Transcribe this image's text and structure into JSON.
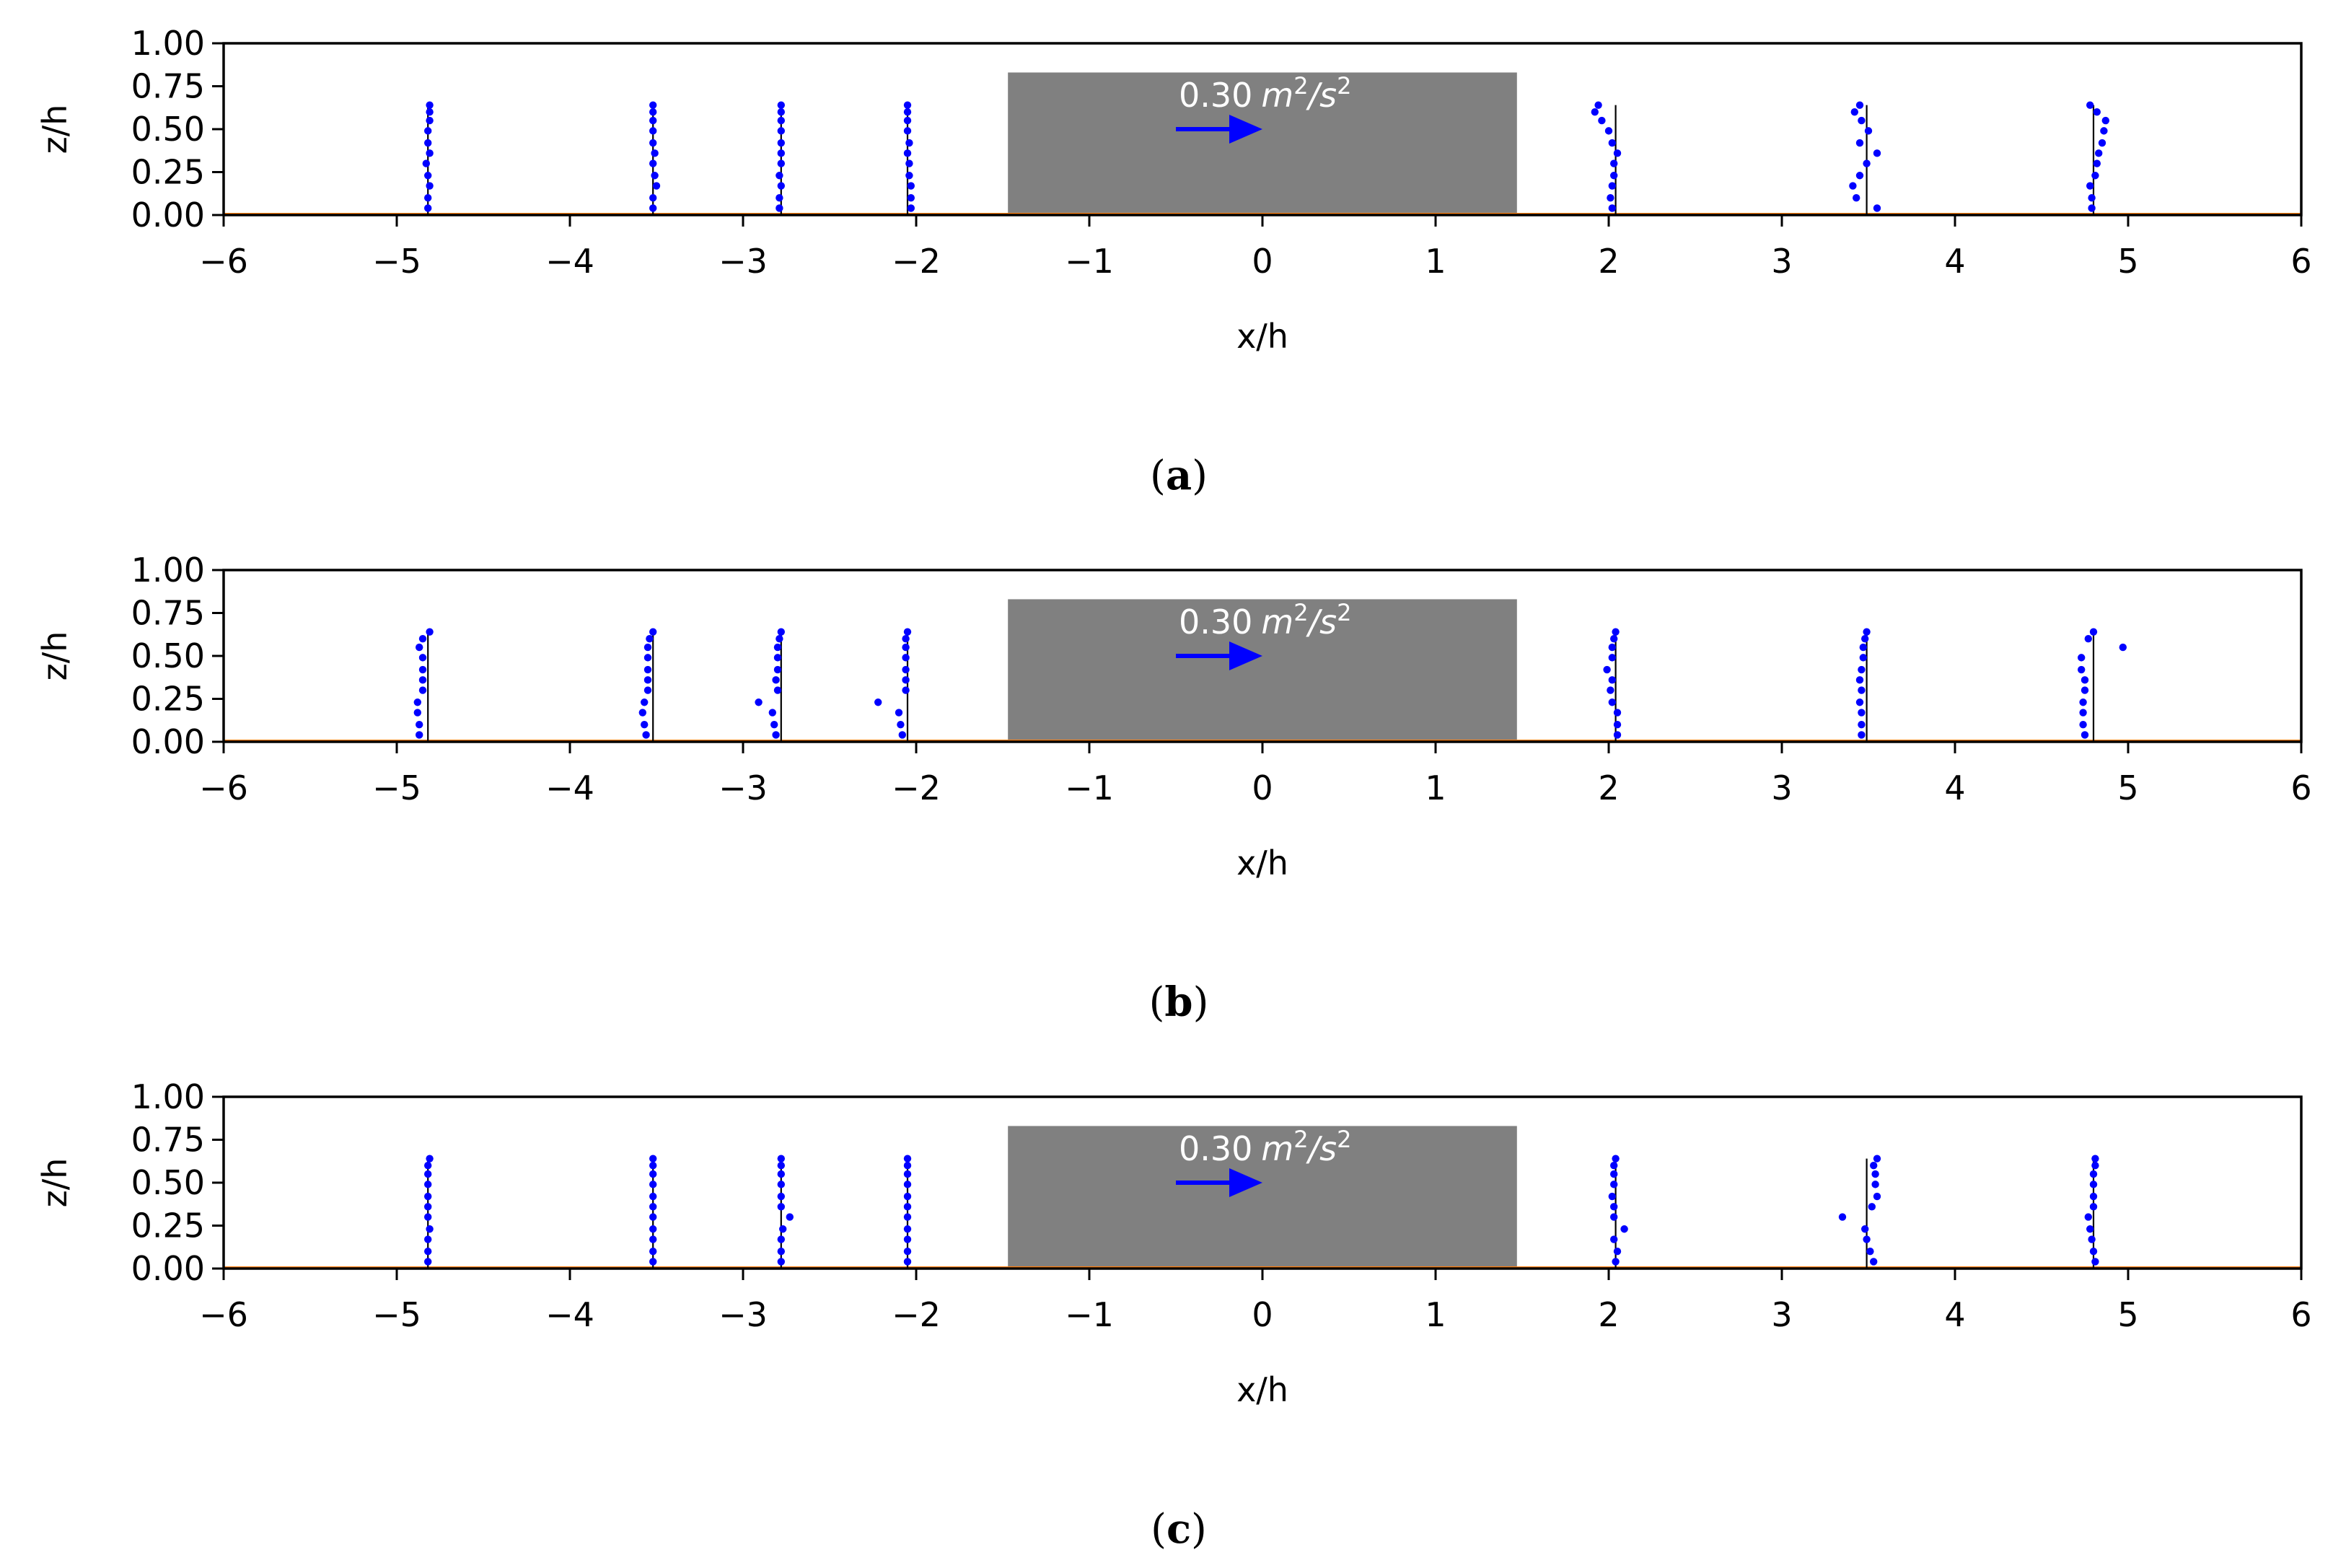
{
  "chart_data": [
    {
      "type": "scatter",
      "caption": "a",
      "xlabel": "x/h",
      "ylabel": "z/h",
      "xlim": [
        -6,
        6
      ],
      "ylim": [
        0,
        1
      ],
      "xticks": [
        "−6",
        "−5",
        "−4",
        "−3",
        "−2",
        "−1",
        "0",
        "1",
        "2",
        "3",
        "4",
        "5",
        "6"
      ],
      "yticks": [
        "0.00",
        "0.25",
        "0.50",
        "0.75",
        "1.00"
      ],
      "building": {
        "x": [
          -1.47,
          1.47
        ],
        "z": [
          0,
          0.83
        ],
        "color": "#808080"
      },
      "ground_line_color": "#ff7f0e",
      "reference_vector": {
        "label_value": "0.30",
        "label_unit": "m",
        "label_exp": "2",
        "label_unit2": "/s",
        "label_exp2": "2",
        "x0": -0.5,
        "x1": 0.0,
        "z": 0.5,
        "color": "#0000ff"
      },
      "profile_color": "#0000ff",
      "profiles": [
        {
          "x0": -4.82,
          "z": [
            0.04,
            0.1,
            0.17,
            0.23,
            0.3,
            0.36,
            0.42,
            0.49,
            0.55,
            0.6,
            0.64
          ],
          "dx": [
            0,
            0,
            0.01,
            0,
            -0.01,
            0.01,
            0,
            0,
            0.01,
            0.01,
            0.01
          ]
        },
        {
          "x0": -3.52,
          "z": [
            0.04,
            0.1,
            0.17,
            0.23,
            0.3,
            0.36,
            0.42,
            0.49,
            0.55,
            0.6,
            0.64
          ],
          "dx": [
            0,
            0,
            0.02,
            0.01,
            0,
            0.01,
            0,
            0,
            0,
            0,
            0
          ]
        },
        {
          "x0": -2.78,
          "z": [
            0.04,
            0.1,
            0.17,
            0.23,
            0.3,
            0.36,
            0.42,
            0.49,
            0.55,
            0.6,
            0.64
          ],
          "dx": [
            -0.01,
            -0.01,
            0,
            -0.01,
            0,
            0,
            0,
            0,
            0,
            0,
            0
          ]
        },
        {
          "x0": -2.05,
          "z": [
            0.04,
            0.1,
            0.17,
            0.23,
            0.3,
            0.36,
            0.42,
            0.49,
            0.55,
            0.6,
            0.64
          ],
          "dx": [
            0.02,
            0.02,
            0.02,
            0.01,
            0.01,
            0,
            0.01,
            0,
            0,
            0,
            0
          ]
        },
        {
          "x0": 2.04,
          "z": [
            0.04,
            0.1,
            0.17,
            0.23,
            0.3,
            0.36,
            0.42,
            0.49,
            0.55,
            0.6,
            0.64
          ],
          "dx": [
            -0.02,
            -0.03,
            -0.02,
            -0.01,
            -0.01,
            0.01,
            -0.02,
            -0.04,
            -0.08,
            -0.12,
            -0.1
          ]
        },
        {
          "x0": 3.49,
          "z": [
            0.04,
            0.1,
            0.17,
            0.23,
            0.3,
            0.36,
            0.42,
            0.49,
            0.55,
            0.6,
            0.64
          ],
          "dx": [
            0.06,
            -0.06,
            -0.08,
            -0.04,
            0,
            0.06,
            -0.04,
            0.01,
            -0.03,
            -0.07,
            -0.04
          ]
        },
        {
          "x0": 4.8,
          "z": [
            0.04,
            0.1,
            0.17,
            0.23,
            0.3,
            0.36,
            0.42,
            0.49,
            0.55,
            0.6,
            0.64
          ],
          "dx": [
            -0.01,
            -0.01,
            -0.02,
            0.01,
            0.02,
            0.03,
            0.05,
            0.06,
            0.07,
            0.02,
            -0.02
          ]
        }
      ]
    },
    {
      "type": "scatter",
      "caption": "b",
      "xlabel": "x/h",
      "ylabel": "z/h",
      "xlim": [
        -6,
        6
      ],
      "ylim": [
        0,
        1
      ],
      "xticks": [
        "−6",
        "−5",
        "−4",
        "−3",
        "−2",
        "−1",
        "0",
        "1",
        "2",
        "3",
        "4",
        "5",
        "6"
      ],
      "yticks": [
        "0.00",
        "0.25",
        "0.50",
        "0.75",
        "1.00"
      ],
      "building": {
        "x": [
          -1.47,
          1.47
        ],
        "z": [
          0,
          0.83
        ],
        "color": "#808080"
      },
      "ground_line_color": "#ff7f0e",
      "reference_vector": {
        "label_value": "0.30",
        "label_unit": "m",
        "label_exp": "2",
        "label_unit2": "/s",
        "label_exp2": "2",
        "x0": -0.5,
        "x1": 0.0,
        "z": 0.5,
        "color": "#0000ff"
      },
      "profile_color": "#0000ff",
      "profiles": [
        {
          "x0": -4.82,
          "z": [
            0.04,
            0.1,
            0.17,
            0.23,
            0.3,
            0.36,
            0.42,
            0.49,
            0.55,
            0.6,
            0.64
          ],
          "dx": [
            -0.05,
            -0.05,
            -0.06,
            -0.06,
            -0.03,
            -0.03,
            -0.03,
            -0.03,
            -0.05,
            -0.03,
            0.01
          ]
        },
        {
          "x0": -3.52,
          "z": [
            0.04,
            0.1,
            0.17,
            0.23,
            0.3,
            0.36,
            0.42,
            0.49,
            0.55,
            0.6,
            0.64
          ],
          "dx": [
            -0.04,
            -0.05,
            -0.06,
            -0.05,
            -0.03,
            -0.03,
            -0.03,
            -0.03,
            -0.03,
            -0.02,
            0
          ]
        },
        {
          "x0": -2.78,
          "z": [
            0.04,
            0.1,
            0.17,
            0.23,
            0.3,
            0.36,
            0.42,
            0.49,
            0.55,
            0.6,
            0.64
          ],
          "dx": [
            -0.03,
            -0.04,
            -0.05,
            -0.13,
            -0.02,
            -0.03,
            -0.02,
            -0.02,
            -0.02,
            -0.01,
            0
          ]
        },
        {
          "x0": -2.05,
          "z": [
            0.04,
            0.1,
            0.17,
            0.23,
            0.3,
            0.36,
            0.42,
            0.49,
            0.55,
            0.6,
            0.64
          ],
          "dx": [
            -0.03,
            -0.04,
            -0.05,
            -0.17,
            -0.01,
            -0.01,
            -0.01,
            -0.01,
            -0.01,
            -0.01,
            0
          ]
        },
        {
          "x0": 2.04,
          "z": [
            0.04,
            0.1,
            0.17,
            0.23,
            0.3,
            0.36,
            0.42,
            0.49,
            0.55,
            0.6,
            0.64
          ],
          "dx": [
            0.01,
            0.01,
            0.01,
            -0.02,
            -0.03,
            -0.02,
            -0.05,
            -0.02,
            -0.02,
            -0.01,
            0
          ]
        },
        {
          "x0": 3.49,
          "z": [
            0.04,
            0.1,
            0.17,
            0.23,
            0.3,
            0.36,
            0.42,
            0.49,
            0.55,
            0.6,
            0.64
          ],
          "dx": [
            -0.03,
            -0.03,
            -0.03,
            -0.04,
            -0.03,
            -0.04,
            -0.03,
            -0.02,
            -0.02,
            -0.01,
            0
          ]
        },
        {
          "x0": 4.8,
          "z": [
            0.04,
            0.1,
            0.17,
            0.23,
            0.3,
            0.36,
            0.42,
            0.49,
            0.55,
            0.6,
            0.64
          ],
          "dx": [
            -0.05,
            -0.06,
            -0.06,
            -0.06,
            -0.05,
            -0.05,
            -0.07,
            -0.07,
            0.17,
            -0.03,
            0
          ]
        }
      ]
    },
    {
      "type": "scatter",
      "caption": "c",
      "xlabel": "x/h",
      "ylabel": "z/h",
      "xlim": [
        -6,
        6
      ],
      "ylim": [
        0,
        1
      ],
      "xticks": [
        "−6",
        "−5",
        "−4",
        "−3",
        "−2",
        "−1",
        "0",
        "1",
        "2",
        "3",
        "4",
        "5",
        "6"
      ],
      "yticks": [
        "0.00",
        "0.25",
        "0.50",
        "0.75",
        "1.00"
      ],
      "building": {
        "x": [
          -1.47,
          1.47
        ],
        "z": [
          0,
          0.83
        ],
        "color": "#808080"
      },
      "ground_line_color": "#ff7f0e",
      "reference_vector": {
        "label_value": "0.30",
        "label_unit": "m",
        "label_exp": "2",
        "label_unit2": "/s",
        "label_exp2": "2",
        "x0": -0.5,
        "x1": 0.0,
        "z": 0.5,
        "color": "#0000ff"
      },
      "profile_color": "#0000ff",
      "profiles": [
        {
          "x0": -4.82,
          "z": [
            0.04,
            0.1,
            0.17,
            0.23,
            0.3,
            0.36,
            0.42,
            0.49,
            0.55,
            0.6,
            0.64
          ],
          "dx": [
            0,
            0,
            0,
            0.01,
            0,
            0,
            0,
            0,
            0,
            0,
            0.01
          ]
        },
        {
          "x0": -3.52,
          "z": [
            0.04,
            0.1,
            0.17,
            0.23,
            0.3,
            0.36,
            0.42,
            0.49,
            0.55,
            0.6,
            0.64
          ],
          "dx": [
            0,
            0,
            0,
            0,
            0,
            0,
            0,
            0,
            0,
            0,
            0
          ]
        },
        {
          "x0": -2.78,
          "z": [
            0.04,
            0.1,
            0.17,
            0.23,
            0.3,
            0.36,
            0.42,
            0.49,
            0.55,
            0.6,
            0.64
          ],
          "dx": [
            0,
            0,
            0,
            0.01,
            0.05,
            0,
            0,
            0,
            0,
            0,
            0
          ]
        },
        {
          "x0": -2.05,
          "z": [
            0.04,
            0.1,
            0.17,
            0.23,
            0.3,
            0.36,
            0.42,
            0.49,
            0.55,
            0.6,
            0.64
          ],
          "dx": [
            0,
            0,
            0,
            0,
            0,
            0,
            0,
            0,
            0,
            0,
            0
          ]
        },
        {
          "x0": 2.04,
          "z": [
            0.04,
            0.1,
            0.17,
            0.23,
            0.3,
            0.36,
            0.42,
            0.49,
            0.55,
            0.6,
            0.64
          ],
          "dx": [
            0,
            0.01,
            -0.01,
            0.05,
            -0.01,
            -0.01,
            -0.02,
            -0.01,
            -0.01,
            -0.01,
            0
          ]
        },
        {
          "x0": 3.49,
          "z": [
            0.04,
            0.1,
            0.17,
            0.23,
            0.3,
            0.36,
            0.42,
            0.49,
            0.55,
            0.6,
            0.64
          ],
          "dx": [
            0.04,
            0.02,
            0,
            -0.01,
            -0.14,
            0.03,
            0.06,
            0.05,
            0.05,
            0.04,
            0.06
          ]
        },
        {
          "x0": 4.8,
          "z": [
            0.04,
            0.1,
            0.17,
            0.23,
            0.3,
            0.36,
            0.42,
            0.49,
            0.55,
            0.6,
            0.64
          ],
          "dx": [
            0.01,
            0,
            -0.01,
            -0.02,
            -0.03,
            0,
            0,
            0,
            0,
            0.01,
            0.01
          ]
        }
      ]
    }
  ]
}
